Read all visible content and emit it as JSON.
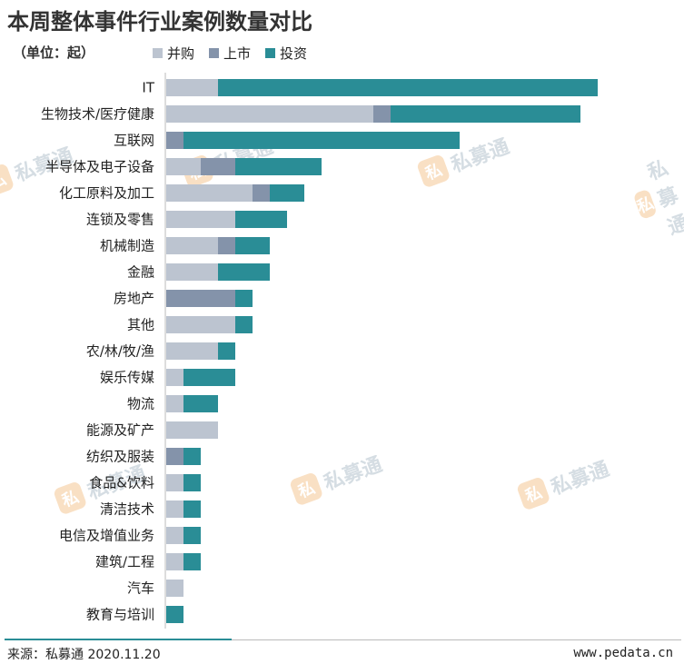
{
  "title": "本周整体事件行业案例数量对比",
  "unit": "（单位：起）",
  "colors": {
    "merger": "#bcc4d0",
    "ipo": "#8493aa",
    "investment": "#2a8d96"
  },
  "legend": [
    {
      "label": "并购",
      "color": "#bcc4d0"
    },
    {
      "label": "上市",
      "color": "#8493aa"
    },
    {
      "label": "投资",
      "color": "#2a8d96"
    }
  ],
  "watermark": {
    "logo": "私",
    "text": "私募通"
  },
  "footer": {
    "source": "来源：私募通 2020.11.20",
    "site": "www.pedata.cn"
  },
  "chart_data": {
    "type": "bar",
    "orientation": "horizontal",
    "stacked": true,
    "categories": [
      "IT",
      "生物技术/医疗健康",
      "互联网",
      "半导体及电子设备",
      "化工原料及加工",
      "连锁及零售",
      "机械制造",
      "金融",
      "房地产",
      "其他",
      "农/林/牧/渔",
      "娱乐传媒",
      "物流",
      "能源及矿产",
      "纺织及服装",
      "食品&饮料",
      "清洁技术",
      "电信及增值业务",
      "建筑/工程",
      "汽车",
      "教育与培训"
    ],
    "series": [
      {
        "name": "并购",
        "values": [
          3,
          12,
          0,
          2,
          5,
          4,
          3,
          3,
          0,
          4,
          3,
          1,
          1,
          3,
          0,
          1,
          1,
          1,
          1,
          1,
          0
        ]
      },
      {
        "name": "上市",
        "values": [
          0,
          1,
          1,
          2,
          1,
          0,
          1,
          0,
          4,
          0,
          0,
          0,
          0,
          0,
          1,
          0,
          0,
          0,
          0,
          0,
          0
        ]
      },
      {
        "name": "投资",
        "values": [
          22,
          11,
          16,
          5,
          2,
          3,
          2,
          3,
          1,
          1,
          1,
          3,
          2,
          0,
          1,
          1,
          1,
          1,
          1,
          0,
          1
        ]
      }
    ],
    "xlim": [
      0,
      25
    ],
    "grid": false,
    "legend_position": "top"
  }
}
